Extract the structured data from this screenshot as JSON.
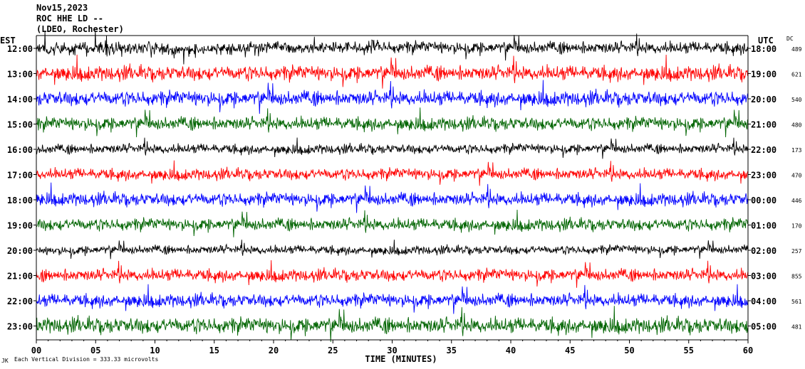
{
  "header": {
    "date": "Nov15,2023",
    "station": "ROC HHE LD --",
    "network": "(LDEO, Rochester)"
  },
  "left_axis_label": "EST",
  "right_axis_label": "UTC",
  "dc_label": "DC",
  "x_axis_label": "TIME (MINUTES)",
  "footer_note": "Each Vertical Division = 333.33 microvolts",
  "footer_mark": "JK",
  "colors": {
    "trace_cycle": [
      "#000000",
      "#ff0000",
      "#0000ff",
      "#006400"
    ],
    "frame": "#000000"
  },
  "chart_data": {
    "type": "line",
    "x_ticks": [
      "00",
      "05",
      "10",
      "15",
      "20",
      "25",
      "30",
      "35",
      "40",
      "45",
      "50",
      "55",
      "60"
    ],
    "xlim": [
      0,
      60
    ],
    "rows": [
      {
        "est": "12:00",
        "utc": "18:00",
        "dc": "489",
        "color": "#000000",
        "amplitude": 14
      },
      {
        "est": "13:00",
        "utc": "19:00",
        "dc": "621",
        "color": "#ff0000",
        "amplitude": 17
      },
      {
        "est": "14:00",
        "utc": "20:00",
        "dc": "540",
        "color": "#0000ff",
        "amplitude": 17
      },
      {
        "est": "15:00",
        "utc": "21:00",
        "dc": "480",
        "color": "#006400",
        "amplitude": 15
      },
      {
        "est": "16:00",
        "utc": "22:00",
        "dc": "173",
        "color": "#000000",
        "amplitude": 11
      },
      {
        "est": "17:00",
        "utc": "23:00",
        "dc": "470",
        "color": "#ff0000",
        "amplitude": 13
      },
      {
        "est": "18:00",
        "utc": "00:00",
        "dc": "446",
        "color": "#0000ff",
        "amplitude": 15
      },
      {
        "est": "19:00",
        "utc": "01:00",
        "dc": "170",
        "color": "#006400",
        "amplitude": 14
      },
      {
        "est": "20:00",
        "utc": "02:00",
        "dc": "257",
        "color": "#000000",
        "amplitude": 10
      },
      {
        "est": "21:00",
        "utc": "03:00",
        "dc": "855",
        "color": "#ff0000",
        "amplitude": 14
      },
      {
        "est": "22:00",
        "utc": "04:00",
        "dc": "561",
        "color": "#0000ff",
        "amplitude": 15
      },
      {
        "est": "23:00",
        "utc": "05:00",
        "dc": "481",
        "color": "#006400",
        "amplitude": 18
      }
    ]
  }
}
